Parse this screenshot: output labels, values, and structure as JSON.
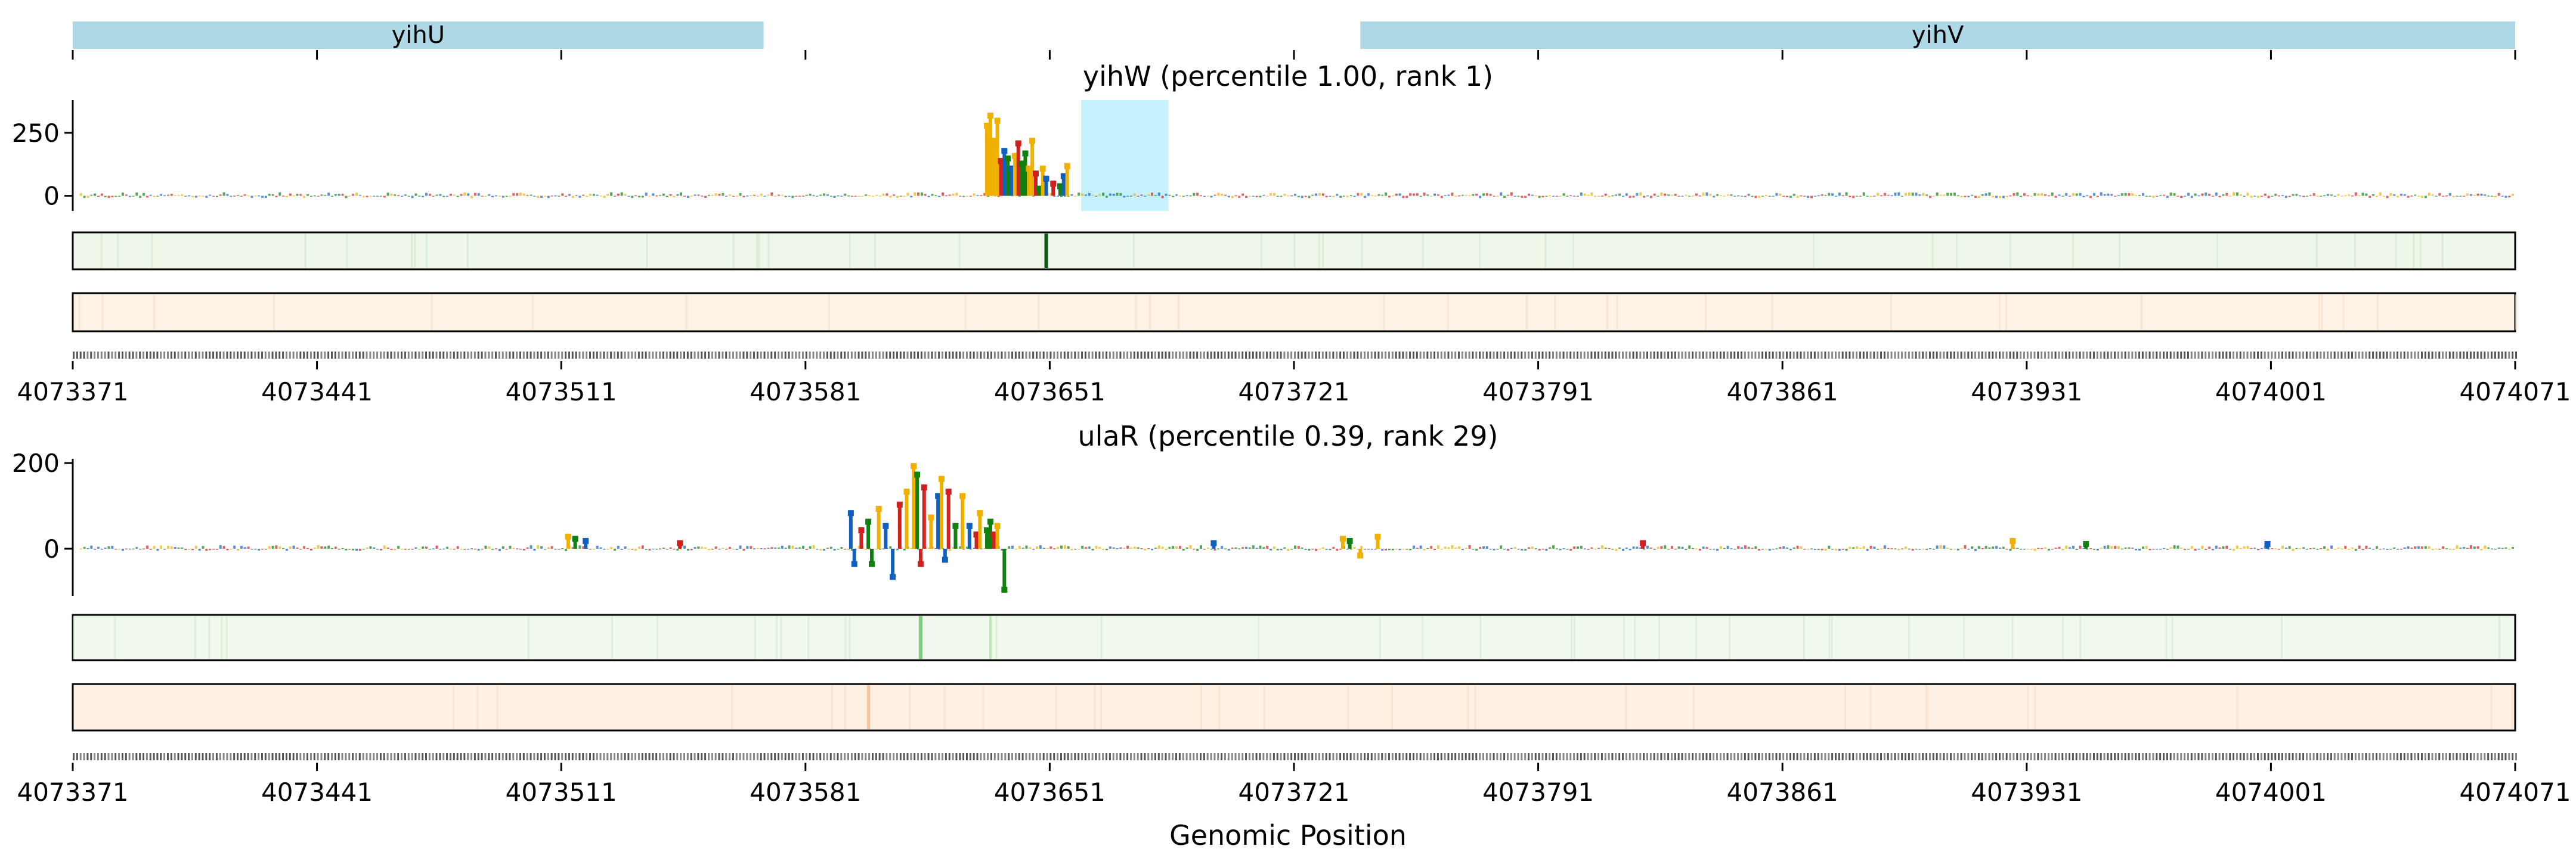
{
  "chart_data": {
    "type": "genome-track",
    "xlabel": "Genomic Position",
    "region": [
      4073371,
      4074071
    ],
    "x_ticks": [
      4073371,
      4073441,
      4073511,
      4073581,
      4073651,
      4073721,
      4073791,
      4073861,
      4073931,
      4074001,
      4074071
    ],
    "genes": [
      {
        "name": "yihU",
        "start": 4073371,
        "end": 4073569
      },
      {
        "name": "yihV",
        "start": 4073740,
        "end": 4074071
      }
    ],
    "panels": [
      {
        "title": "yihW (percentile 1.00, rank 1)",
        "ylim": [
          -60,
          380
        ],
        "yticks": [
          0,
          250
        ],
        "highlight": [
          4073660,
          4073685
        ],
        "bars": [
          {
            "x": 4073633,
            "y": 290,
            "c": "#f0b000"
          },
          {
            "x": 4073634,
            "y": 330,
            "c": "#f0b000"
          },
          {
            "x": 4073635,
            "y": 230,
            "c": "#f0b000"
          },
          {
            "x": 4073636,
            "y": 310,
            "c": "#f0b000"
          },
          {
            "x": 4073637,
            "y": 150,
            "c": "#d02020"
          },
          {
            "x": 4073638,
            "y": 190,
            "c": "#1060c0"
          },
          {
            "x": 4073639,
            "y": 160,
            "c": "#108010"
          },
          {
            "x": 4073640,
            "y": 120,
            "c": "#1060c0"
          },
          {
            "x": 4073641,
            "y": 170,
            "c": "#f0b000"
          },
          {
            "x": 4073642,
            "y": 220,
            "c": "#d02020"
          },
          {
            "x": 4073643,
            "y": 140,
            "c": "#108010"
          },
          {
            "x": 4073644,
            "y": 180,
            "c": "#108010"
          },
          {
            "x": 4073645,
            "y": 120,
            "c": "#f0b000"
          },
          {
            "x": 4073646,
            "y": 230,
            "c": "#f0b000"
          },
          {
            "x": 4073647,
            "y": 100,
            "c": "#d02020"
          },
          {
            "x": 4073648,
            "y": 40,
            "c": "#108010"
          },
          {
            "x": 4073649,
            "y": 120,
            "c": "#f0b000"
          },
          {
            "x": 4073650,
            "y": 80,
            "c": "#1060c0"
          },
          {
            "x": 4073652,
            "y": 60,
            "c": "#d02020"
          },
          {
            "x": 4073654,
            "y": 50,
            "c": "#108010"
          },
          {
            "x": 4073655,
            "y": 90,
            "c": "#1060c0"
          },
          {
            "x": 4073656,
            "y": 130,
            "c": "#f0b000"
          }
        ],
        "seq_peak": 4073650
      },
      {
        "title": "ulaR (percentile 0.39, rank 29)",
        "ylim": [
          -110,
          210
        ],
        "yticks": [
          0,
          200
        ],
        "highlight": null,
        "bars": [
          {
            "x": 4073594,
            "y": 90,
            "c": "#1060c0"
          },
          {
            "x": 4073595,
            "y": -40,
            "c": "#1060c0"
          },
          {
            "x": 4073597,
            "y": 50,
            "c": "#d02020"
          },
          {
            "x": 4073599,
            "y": 70,
            "c": "#108010"
          },
          {
            "x": 4073600,
            "y": -40,
            "c": "#108010"
          },
          {
            "x": 4073602,
            "y": 100,
            "c": "#f0b000"
          },
          {
            "x": 4073604,
            "y": 60,
            "c": "#1060c0"
          },
          {
            "x": 4073606,
            "y": -70,
            "c": "#1060c0"
          },
          {
            "x": 4073608,
            "y": 110,
            "c": "#d02020"
          },
          {
            "x": 4073610,
            "y": 140,
            "c": "#f0b000"
          },
          {
            "x": 4073612,
            "y": 200,
            "c": "#f0b000"
          },
          {
            "x": 4073613,
            "y": 180,
            "c": "#108010"
          },
          {
            "x": 4073614,
            "y": -40,
            "c": "#d02020"
          },
          {
            "x": 4073615,
            "y": 150,
            "c": "#d02020"
          },
          {
            "x": 4073617,
            "y": 80,
            "c": "#f0b000"
          },
          {
            "x": 4073619,
            "y": 130,
            "c": "#1060c0"
          },
          {
            "x": 4073620,
            "y": 170,
            "c": "#f0b000"
          },
          {
            "x": 4073621,
            "y": -30,
            "c": "#1060c0"
          },
          {
            "x": 4073622,
            "y": 140,
            "c": "#d02020"
          },
          {
            "x": 4073624,
            "y": 60,
            "c": "#108010"
          },
          {
            "x": 4073626,
            "y": 130,
            "c": "#f0b000"
          },
          {
            "x": 4073628,
            "y": 60,
            "c": "#1060c0"
          },
          {
            "x": 4073630,
            "y": 40,
            "c": "#d02020"
          },
          {
            "x": 4073631,
            "y": 90,
            "c": "#f0b000"
          },
          {
            "x": 4073633,
            "y": 50,
            "c": "#108010"
          },
          {
            "x": 4073634,
            "y": 70,
            "c": "#108010"
          },
          {
            "x": 4073635,
            "y": 40,
            "c": "#d02020"
          },
          {
            "x": 4073636,
            "y": 60,
            "c": "#f0b000"
          },
          {
            "x": 4073638,
            "y": -100,
            "c": "#108010"
          },
          {
            "x": 4073513,
            "y": 35,
            "c": "#f0b000"
          },
          {
            "x": 4073515,
            "y": 30,
            "c": "#108010"
          },
          {
            "x": 4073518,
            "y": 25,
            "c": "#1060c0"
          },
          {
            "x": 4073545,
            "y": 20,
            "c": "#d02020"
          },
          {
            "x": 4073698,
            "y": 20,
            "c": "#1060c0"
          },
          {
            "x": 4073735,
            "y": 30,
            "c": "#f0b000"
          },
          {
            "x": 4073737,
            "y": 25,
            "c": "#108010"
          },
          {
            "x": 4073740,
            "y": -20,
            "c": "#f0b000"
          },
          {
            "x": 4073745,
            "y": 35,
            "c": "#f0b000"
          },
          {
            "x": 4073821,
            "y": 20,
            "c": "#d02020"
          },
          {
            "x": 4073927,
            "y": 25,
            "c": "#f0b000"
          },
          {
            "x": 4073948,
            "y": 18,
            "c": "#108010"
          },
          {
            "x": 4074000,
            "y": 18,
            "c": "#1060c0"
          }
        ],
        "seq_peak": 4073614
      }
    ]
  }
}
